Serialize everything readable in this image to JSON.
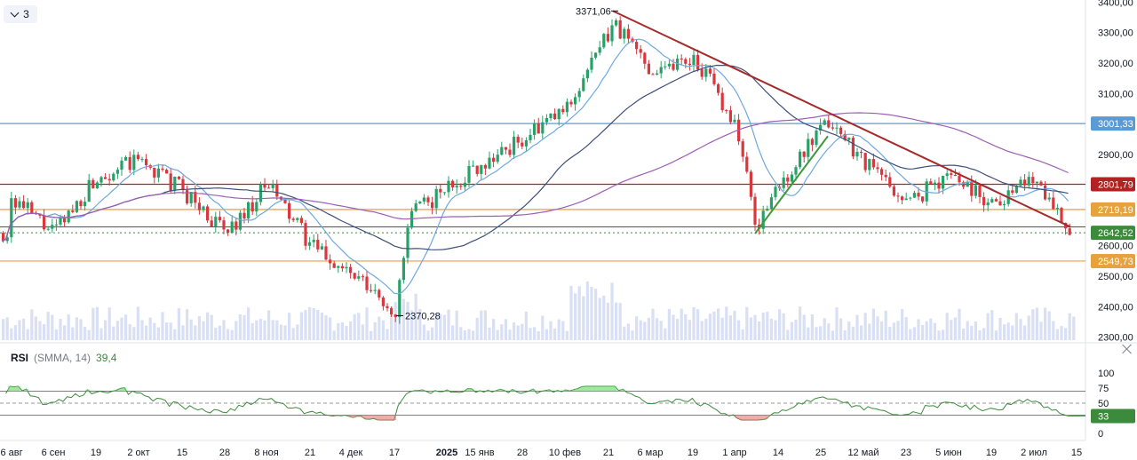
{
  "toolbar": {
    "collapse_count": "3"
  },
  "chart_data": {
    "type": "candlestick",
    "price_axis": {
      "ticks": [
        "3400,00",
        "3300,00",
        "3200,00",
        "3100,00",
        "2900,00",
        "2800,00",
        "2600,00",
        "2500,00",
        "2400,00",
        "2300,00"
      ],
      "ylim": [
        2290,
        3410
      ]
    },
    "x_axis_labels": [
      "26 авг",
      "6 сен",
      "19",
      "2 окт",
      "15",
      "28",
      "8 ноя",
      "21",
      "4 дек",
      "17",
      "2025",
      "15 янв",
      "28",
      "10 фев",
      "21",
      "6 мар",
      "19",
      "1 апр",
      "14",
      "25",
      "12 май",
      "23",
      "5 июн",
      "19",
      "2 июл",
      "15"
    ],
    "year_label": "2025",
    "horizontal_levels": [
      {
        "value": 3001.33,
        "label": "3001,33",
        "color": "#5b9bd5"
      },
      {
        "value": 2801.79,
        "label": "2801,79",
        "color": "#b22222"
      },
      {
        "value": 2719.19,
        "label": "2719,19",
        "color": "#e6a23c"
      },
      {
        "value": 2549.73,
        "label": "2549,73",
        "color": "#e6a23c"
      },
      {
        "value": 2662.0,
        "label": "",
        "color": "#8b4513"
      }
    ],
    "last_price": {
      "value": 2642.52,
      "label": "2642,52",
      "color": "#3c8a3c"
    },
    "annotations": [
      {
        "label": "3371,06",
        "kind": "high",
        "value": 3371.06
      },
      {
        "label": "2370,28",
        "kind": "low",
        "value": 2370.28
      }
    ],
    "trendlines": [
      {
        "color": "#a52a2a",
        "from": [
          3371.06,
          "21 фев"
        ],
        "to": [
          2662,
          "15 июл"
        ]
      },
      {
        "color": "#3c9a3c",
        "from": [
          2640,
          "7 апр"
        ],
        "to": [
          2960,
          "25 апр"
        ]
      }
    ],
    "close_series_anchor": [
      [
        "26 авг",
        2760
      ],
      [
        "6 сен",
        2640
      ],
      [
        "19 сен",
        2830
      ],
      [
        "2 окт",
        2880
      ],
      [
        "15 окт",
        2780
      ],
      [
        "28 окт",
        2640
      ],
      [
        "8 ноя",
        2800
      ],
      [
        "21 ноя",
        2600
      ],
      [
        "4 дек",
        2500
      ],
      [
        "17 дек",
        2380
      ],
      [
        "20 дек",
        2700
      ],
      [
        "15 янв",
        2870
      ],
      [
        "28 янв",
        2950
      ],
      [
        "10 фев",
        3050
      ],
      [
        "21 фев",
        3330
      ],
      [
        "6 мар",
        3180
      ],
      [
        "19 мар",
        3220
      ],
      [
        "1 апр",
        3000
      ],
      [
        "7 апр",
        2660
      ],
      [
        "14 апр",
        2800
      ],
      [
        "25 апр",
        3010
      ],
      [
        "12 май",
        2880
      ],
      [
        "23 май",
        2740
      ],
      [
        "5 июн",
        2840
      ],
      [
        "19 июн",
        2740
      ],
      [
        "2 июл",
        2830
      ],
      [
        "15 июл",
        2642.52
      ]
    ],
    "moving_averages": [
      {
        "color": "#6fa8dc",
        "kind": "short"
      },
      {
        "color": "#3d4f7a",
        "kind": "medium"
      },
      {
        "color": "#9c5fb5",
        "kind": "long"
      }
    ],
    "rsi": {
      "name": "RSI",
      "params": "(SMMA, 14)",
      "value": "39,4",
      "current_badge": "33",
      "ticks": [
        "100",
        "75",
        "50",
        "25",
        "0"
      ],
      "bands": [
        70,
        50,
        30
      ],
      "ylim": [
        0,
        100
      ]
    }
  }
}
